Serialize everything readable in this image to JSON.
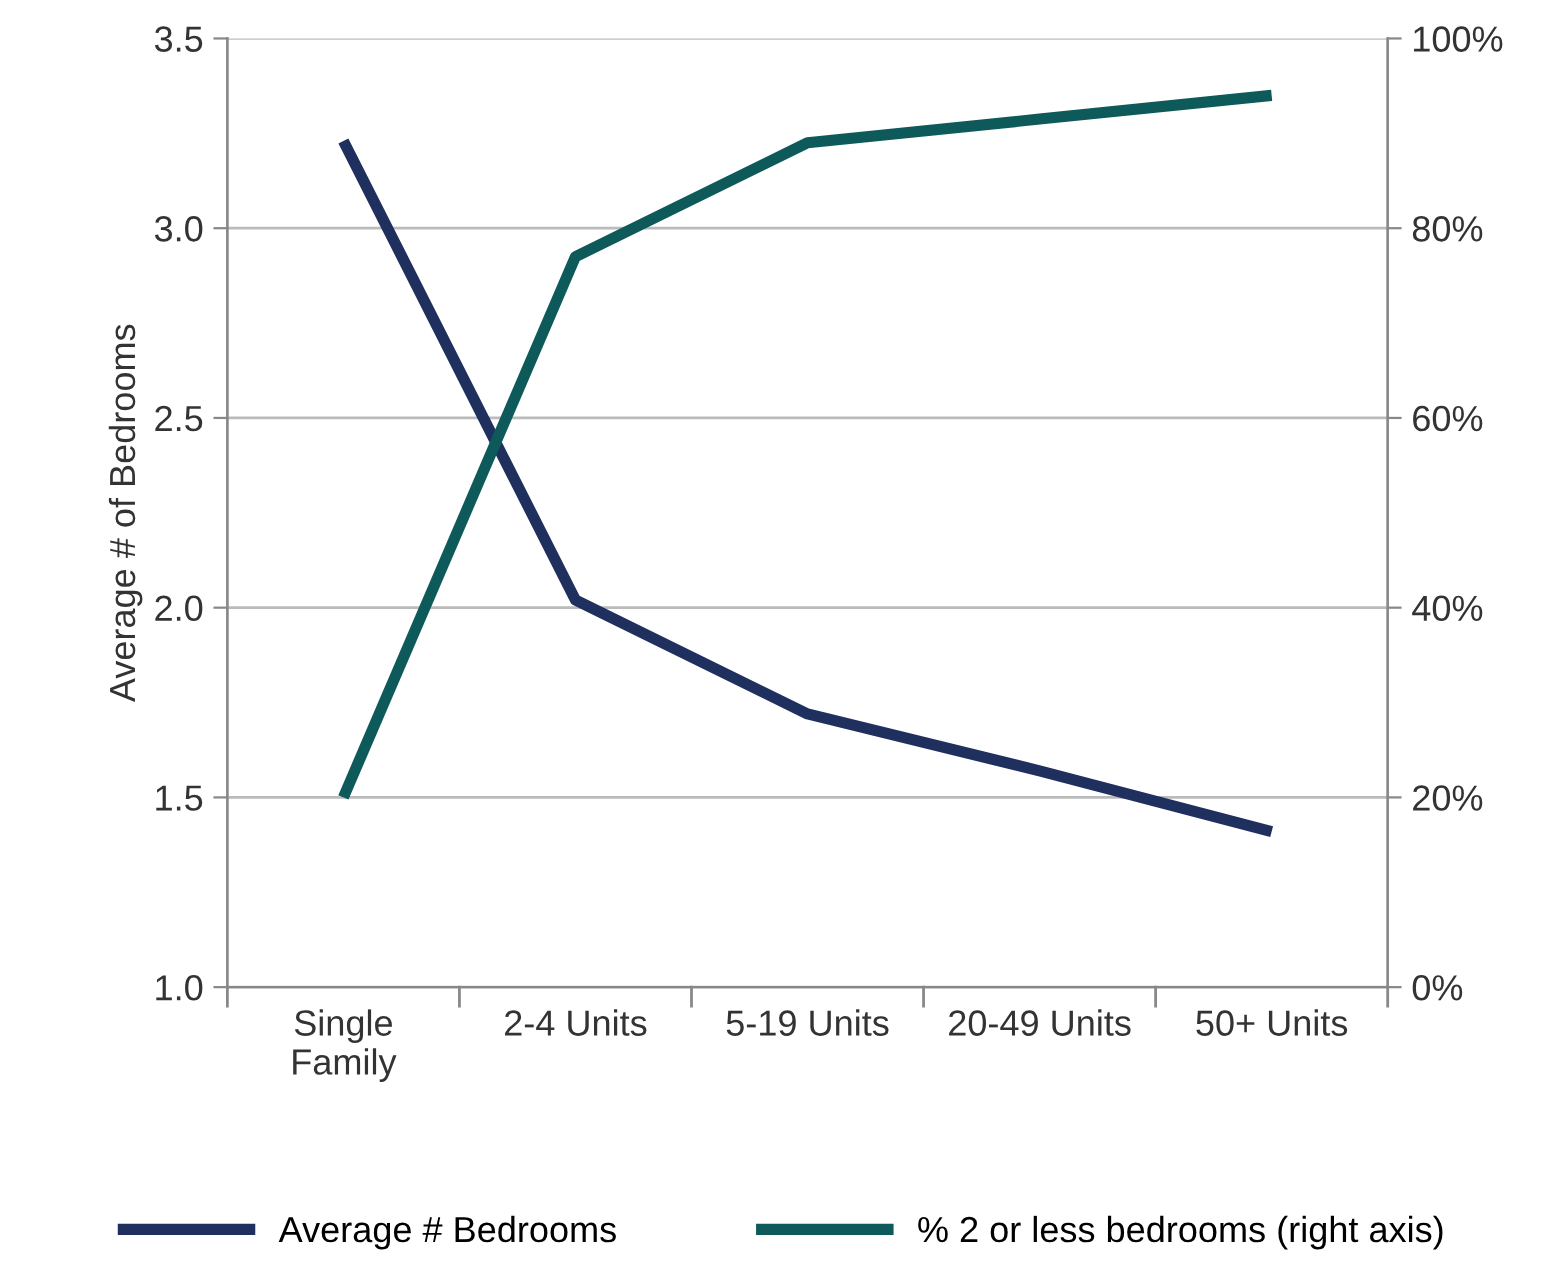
{
  "chart_data": {
    "type": "line",
    "ylabel": "Average # of Bedrooms",
    "categories": [
      "Single\nFamily",
      "2-4 Units",
      "5-19 Units",
      "20-49 Units",
      "50+ Units"
    ],
    "series": [
      {
        "name": "Average # Bedrooms",
        "color": "#1f2f5e",
        "values": [
          3.23,
          2.02,
          1.72,
          1.57,
          1.41
        ]
      },
      {
        "name": "% 2 or less bedrooms (right axis)",
        "color": "#0e5a5a",
        "axis": "y2",
        "values": [
          20,
          77,
          89,
          91.5,
          94
        ]
      }
    ],
    "ylim": [
      1.0,
      3.5
    ],
    "yticks": [
      {
        "value": 1.0,
        "label": "1.0"
      },
      {
        "value": 1.5,
        "label": "1.5"
      },
      {
        "value": 2.0,
        "label": "2.0"
      },
      {
        "value": 2.5,
        "label": "2.5"
      },
      {
        "value": 3.0,
        "label": "3.0"
      },
      {
        "value": 3.5,
        "label": "3.5"
      }
    ],
    "y2lim": [
      0,
      100
    ],
    "y2ticks": [
      {
        "value": 0,
        "label": "0%"
      },
      {
        "value": 20,
        "label": "20%"
      },
      {
        "value": 40,
        "label": "40%"
      },
      {
        "value": 60,
        "label": "60%"
      },
      {
        "value": 80,
        "label": "80%"
      },
      {
        "value": 100,
        "label": "100%"
      }
    ],
    "grid": "y",
    "legend": "bottom",
    "marker": "none",
    "line_style": "solid"
  }
}
